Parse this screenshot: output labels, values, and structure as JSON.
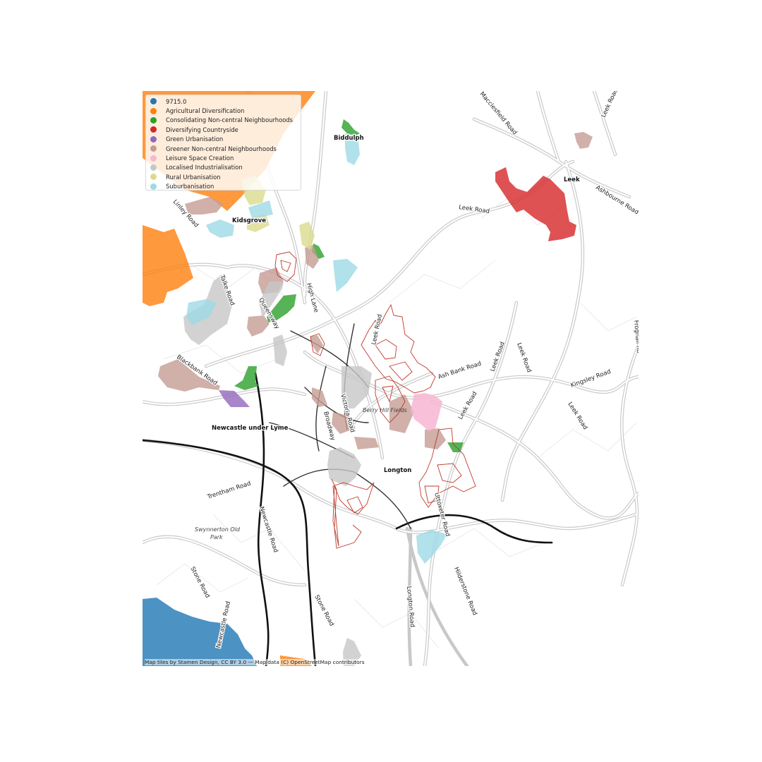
{
  "legend": [
    {
      "label": "9715.0",
      "color": "#1f77b4"
    },
    {
      "label": "Agricultural Diversification",
      "color": "#ff7f0e"
    },
    {
      "label": "Consolidating Non-central Neighbourhoods",
      "color": "#2ca02c"
    },
    {
      "label": "Diversifying Countryside",
      "color": "#d62728"
    },
    {
      "label": "Green Urbanisation",
      "color": "#9467bd"
    },
    {
      "label": "Greener Non-central Neighbourhoods",
      "color": "#c49c94"
    },
    {
      "label": "Leisure Space Creation",
      "color": "#f7b6d2"
    },
    {
      "label": "Localised Industrialisation",
      "color": "#c7c7c7"
    },
    {
      "label": "Rural Urbanisation",
      "color": "#dbdb8d"
    },
    {
      "label": "Suburbanisation",
      "color": "#9edae5"
    }
  ],
  "places": {
    "biddulph": "Biddulph",
    "kidsgrove": "Kidsgrove",
    "leek": "Leek",
    "newcastle": "Newcastle under Lyme",
    "longton": "Longton",
    "berry_hill": "Berry Hill Fields",
    "swynnerton": "Swynnerton Old",
    "swynnerton2": "Park"
  },
  "roads": {
    "macclesfield": "Macclesfield Road",
    "leek_road_ne": "Leek Road",
    "ashbourne": "Ashbourne Road",
    "leek_road_n": "Leek Road",
    "linley": "Linley Road",
    "talke": "Talke Road",
    "high_lane": "High Lane",
    "queensway": "Queensway",
    "leek_road_c": "Leek Road",
    "leek_road_e": "Leek Road",
    "leek_road_e2": "Leek Road",
    "leek_road_se": "Leek Road",
    "ash_bank": "Ash Bank Road",
    "kingsley": "Kingsley Road",
    "froghall": "Froghall Ro",
    "blackbank": "Blackbank Road",
    "victoria": "Victoria Road",
    "broadway": "Broadway",
    "trentham": "Trentham Road",
    "newcastle_rd": "Newcastle Road",
    "newcastle_rd2": "Newcastle Road",
    "stone_rd": "Stone Road",
    "stone_rd2": "Stone Road",
    "longton_rd": "Longton Road",
    "hilderstone": "Hilderstone Road",
    "uttoxeter": "Uttoxeter Road"
  },
  "attribution": "Map tiles by Stamen Design, CC BY 3.0 — Map data (C) OpenStreetMap contributors"
}
